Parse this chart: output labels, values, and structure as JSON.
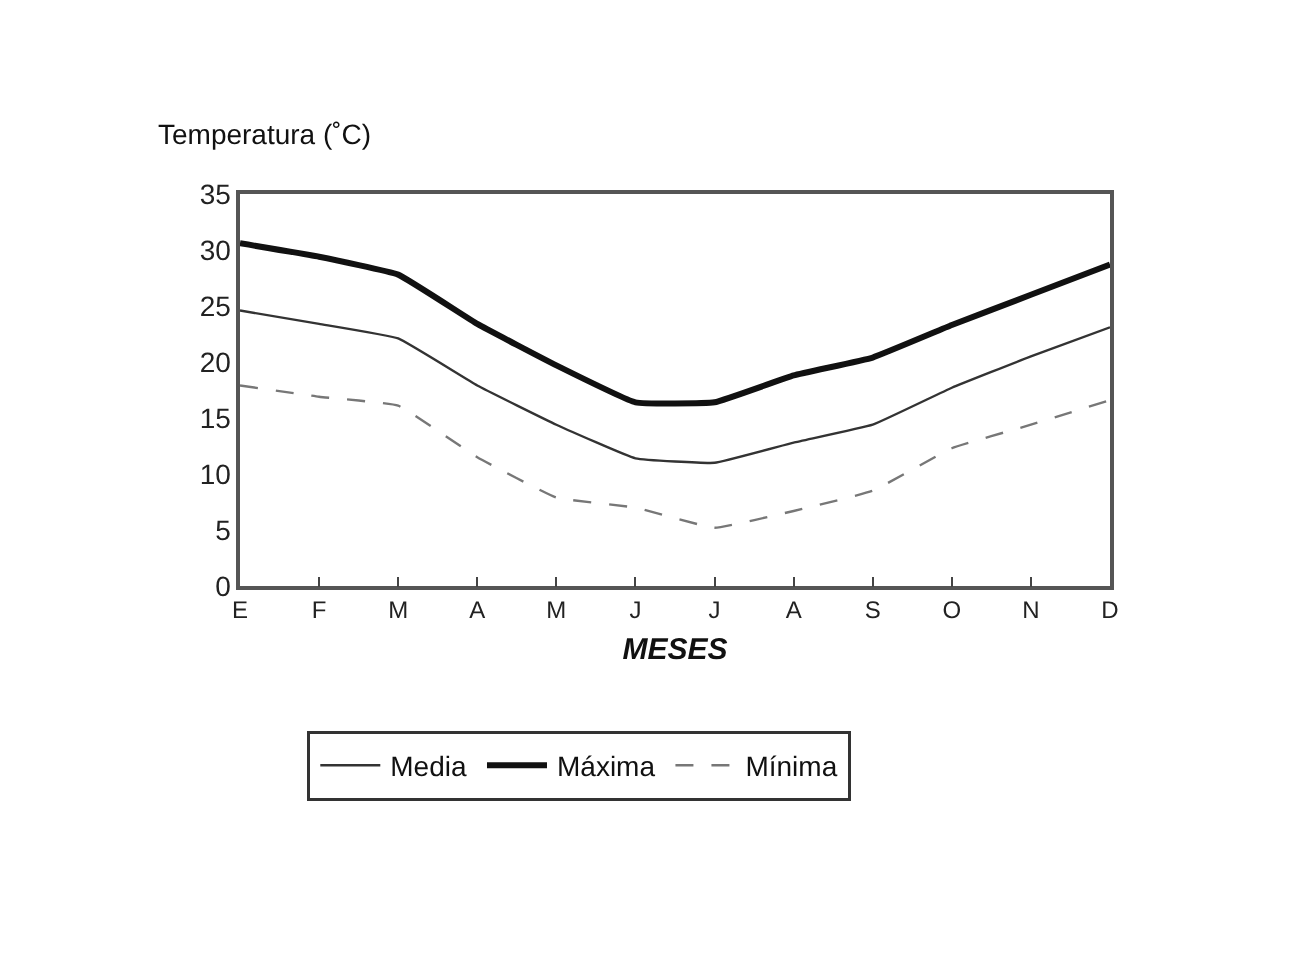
{
  "chart_data": {
    "type": "line",
    "ylabel": "Temperatura (˚C)",
    "xlabel": "MESES",
    "categories": [
      "E",
      "F",
      "M",
      "A",
      "M",
      "J",
      "J",
      "A",
      "S",
      "O",
      "N",
      "D"
    ],
    "series": [
      {
        "name": "Media",
        "color": "#333333",
        "line_style": "solid",
        "values": [
          24.6,
          23.4,
          22.1,
          17.9,
          14.4,
          11.4,
          11.0,
          12.8,
          14.4,
          17.7,
          20.5,
          23.1
        ]
      },
      {
        "name": "Máxima",
        "color": "#111111",
        "line_style": "solid",
        "values": [
          30.6,
          29.4,
          27.8,
          23.4,
          19.7,
          16.4,
          16.4,
          18.8,
          20.4,
          23.3,
          26.0,
          28.7
        ]
      },
      {
        "name": "Mínima",
        "color": "#777777",
        "line_style": "dashed",
        "values": [
          17.9,
          16.9,
          16.1,
          11.5,
          7.9,
          7.0,
          5.2,
          6.7,
          8.5,
          12.3,
          14.4,
          16.6
        ]
      }
    ],
    "ylim": [
      0,
      35
    ],
    "yticks": [
      0,
      5,
      10,
      15,
      20,
      25,
      30,
      35
    ],
    "grid": false,
    "legend": "bottom",
    "marker": "none"
  }
}
